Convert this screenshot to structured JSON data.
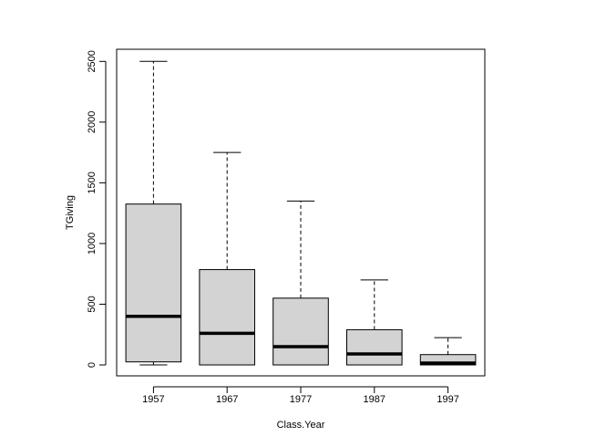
{
  "chart_data": {
    "type": "boxplot",
    "xlabel": "Class.Year",
    "ylabel": "TGiving",
    "ylim": [
      -90,
      2600
    ],
    "yticks": [
      0,
      500,
      1000,
      1500,
      2000,
      2500
    ],
    "ytick_labels": [
      "0",
      "500",
      "1000",
      "1500",
      "2000",
      "2500"
    ],
    "categories": [
      "1957",
      "1967",
      "1977",
      "1987",
      "1997"
    ],
    "boxes": [
      {
        "category": "1957",
        "min": 0,
        "q1": 25,
        "median": 400,
        "q3": 1325,
        "max": 2500
      },
      {
        "category": "1967",
        "min": 0,
        "q1": 0,
        "median": 260,
        "q3": 785,
        "max": 1750
      },
      {
        "category": "1977",
        "min": 0,
        "q1": 0,
        "median": 150,
        "q3": 550,
        "max": 1350
      },
      {
        "category": "1987",
        "min": 0,
        "q1": 0,
        "median": 90,
        "q3": 290,
        "max": 700
      },
      {
        "category": "1997",
        "min": 0,
        "q1": 0,
        "median": 15,
        "q3": 85,
        "max": 225
      }
    ],
    "box_fill": "#d3d3d3",
    "stroke": "#000000",
    "grid": false,
    "legend": "none"
  }
}
